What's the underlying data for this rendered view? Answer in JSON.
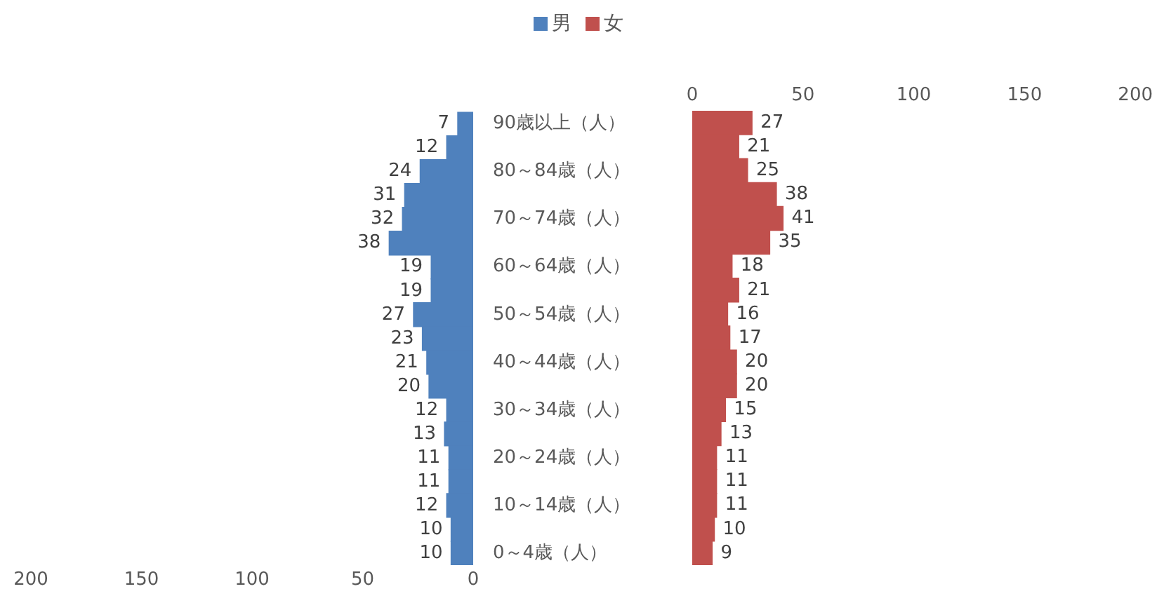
{
  "chart_data": [
    {
      "type": "bar",
      "orientation": "horizontal",
      "categories": [
        "90歳以上（人）",
        null,
        "80～84歳（人）",
        null,
        "70～74歳（人）",
        null,
        "60～64歳（人）",
        null,
        "50～54歳（人）",
        null,
        "40～44歳（人）",
        null,
        "30～34歳（人）",
        null,
        "20～24歳（人）",
        null,
        "10～14歳（人）",
        null,
        "0～4歳（人）"
      ],
      "series": [
        {
          "name": "男",
          "color": "#4f81bd",
          "values": [
            7,
            12,
            24,
            31,
            32,
            38,
            19,
            19,
            27,
            23,
            21,
            20,
            12,
            13,
            11,
            11,
            12,
            10,
            10
          ]
        }
      ],
      "xlim": [
        200,
        0
      ],
      "xticks": [
        200,
        150,
        100,
        50,
        0
      ],
      "data_labels": true,
      "legend": "top"
    },
    {
      "type": "bar",
      "orientation": "horizontal",
      "categories": [
        null,
        null,
        null,
        null,
        null,
        null,
        null,
        null,
        null,
        null,
        null,
        null,
        null,
        null,
        null,
        null,
        null,
        null,
        null
      ],
      "series": [
        {
          "name": "女",
          "color": "#c0504d",
          "values": [
            27,
            21,
            25,
            38,
            41,
            35,
            18,
            21,
            16,
            17,
            20,
            20,
            15,
            13,
            11,
            11,
            11,
            10,
            9
          ]
        }
      ],
      "x2lim": [
        0,
        200
      ],
      "x2ticks": [
        0,
        50,
        100,
        150,
        200
      ],
      "data_labels": true,
      "legend": "top",
      "tick_labels": "x"
    }
  ]
}
